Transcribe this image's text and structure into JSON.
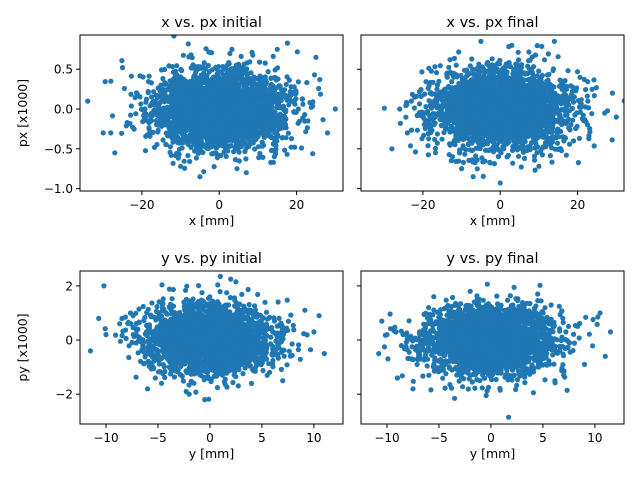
{
  "chart_data": [
    {
      "type": "scatter",
      "title": "x vs. px initial",
      "xlabel": "x [mm]",
      "ylabel": "px [x1000]",
      "xlim": [
        -36,
        32
      ],
      "ylim": [
        -1.03,
        0.93
      ],
      "xticks": [
        -20,
        0,
        20
      ],
      "yticks": [
        -1.0,
        -0.5,
        0.0,
        0.5
      ],
      "show_yticklabels": true,
      "color": "#1f77b4",
      "distribution": {
        "x_center": 0,
        "x_spread": 8.5,
        "y_center": 0,
        "y_spread": 0.24,
        "n_points": 3000,
        "seed": 11
      },
      "outliers": [
        [
          -34,
          0.1
        ],
        [
          -30,
          -0.3
        ],
        [
          -28,
          0.35
        ],
        [
          -27,
          -0.55
        ],
        [
          -25,
          0.52
        ],
        [
          30,
          0.0
        ],
        [
          28,
          -0.3
        ],
        [
          26,
          0.37
        ],
        [
          25,
          0.65
        ],
        [
          -8,
          0.82
        ],
        [
          15,
          0.75
        ],
        [
          -5,
          -0.85
        ],
        [
          7,
          -0.8
        ],
        [
          -10,
          -0.72
        ],
        [
          14,
          -0.67
        ]
      ]
    },
    {
      "type": "scatter",
      "title": "x vs. px final",
      "xlabel": "x [mm]",
      "ylabel": "",
      "xlim": [
        -36,
        32
      ],
      "ylim": [
        -1.03,
        0.93
      ],
      "xticks": [
        -20,
        0,
        20
      ],
      "yticks": [
        -1.0,
        -0.5,
        0.0,
        0.5
      ],
      "show_yticklabels": false,
      "color": "#1f77b4",
      "distribution": {
        "x_center": 0,
        "x_spread": 8.5,
        "y_center": 0,
        "y_spread": 0.24,
        "n_points": 3000,
        "seed": 23
      },
      "outliers": [
        [
          -28,
          -0.5
        ],
        [
          -26,
          0.0
        ],
        [
          -24,
          -0.3
        ],
        [
          -23,
          0.1
        ],
        [
          30,
          -0.1
        ],
        [
          29,
          0.2
        ],
        [
          27,
          -0.05
        ],
        [
          -5,
          0.85
        ],
        [
          3,
          0.8
        ],
        [
          14,
          0.85
        ],
        [
          0,
          -0.93
        ],
        [
          -10,
          -0.75
        ],
        [
          -7,
          -0.85
        ],
        [
          10,
          -0.72
        ],
        [
          -13,
          0.62
        ]
      ]
    },
    {
      "type": "scatter",
      "title": "y vs. py initial",
      "xlabel": "y [mm]",
      "ylabel": "py [x1000]",
      "xlim": [
        -12.5,
        12.8
      ],
      "ylim": [
        -3.1,
        2.55
      ],
      "xticks": [
        -10,
        -5,
        0,
        5,
        10
      ],
      "yticks": [
        -2,
        0,
        2
      ],
      "show_yticklabels": true,
      "color": "#1f77b4",
      "distribution": {
        "x_center": 0,
        "x_spread": 3.0,
        "y_center": 0,
        "y_spread": 0.6,
        "n_points": 3000,
        "seed": 37
      },
      "outliers": [
        [
          -11.5,
          -0.4
        ],
        [
          -10.7,
          0.8
        ],
        [
          -10.2,
          2.0
        ],
        [
          -10,
          0.2
        ],
        [
          11,
          -0.5
        ],
        [
          10.5,
          0.9
        ],
        [
          10,
          0.3
        ],
        [
          1,
          2.35
        ],
        [
          2,
          2.25
        ],
        [
          2.5,
          2.15
        ],
        [
          -0.5,
          -2.2
        ],
        [
          -2,
          -2.0
        ],
        [
          -6,
          -1.8
        ],
        [
          4,
          -1.6
        ],
        [
          7,
          -1.5
        ]
      ]
    },
    {
      "type": "scatter",
      "title": "y vs. py final",
      "xlabel": "y [mm]",
      "ylabel": "",
      "xlim": [
        -12.5,
        12.8
      ],
      "ylim": [
        -3.1,
        2.55
      ],
      "xticks": [
        -10,
        -5,
        0,
        5,
        10
      ],
      "yticks": [
        -2,
        0,
        2
      ],
      "show_yticklabels": false,
      "color": "#1f77b4",
      "distribution": {
        "x_center": 0,
        "x_spread": 3.0,
        "y_center": 0,
        "y_spread": 0.6,
        "n_points": 3000,
        "seed": 53
      },
      "outliers": [
        [
          -10.8,
          -0.5
        ],
        [
          -10.5,
          0.7
        ],
        [
          -10,
          0.2
        ],
        [
          11.5,
          0.3
        ],
        [
          11,
          -0.6
        ],
        [
          10.5,
          1.0
        ],
        [
          -5.5,
          1.6
        ],
        [
          -2,
          1.8
        ],
        [
          4.5,
          1.7
        ],
        [
          1.7,
          -2.85
        ],
        [
          -3.5,
          -2.15
        ],
        [
          -9,
          -1.4
        ],
        [
          -7.5,
          -1.8
        ],
        [
          9,
          -0.9
        ],
        [
          -6,
          1.2
        ]
      ]
    }
  ]
}
